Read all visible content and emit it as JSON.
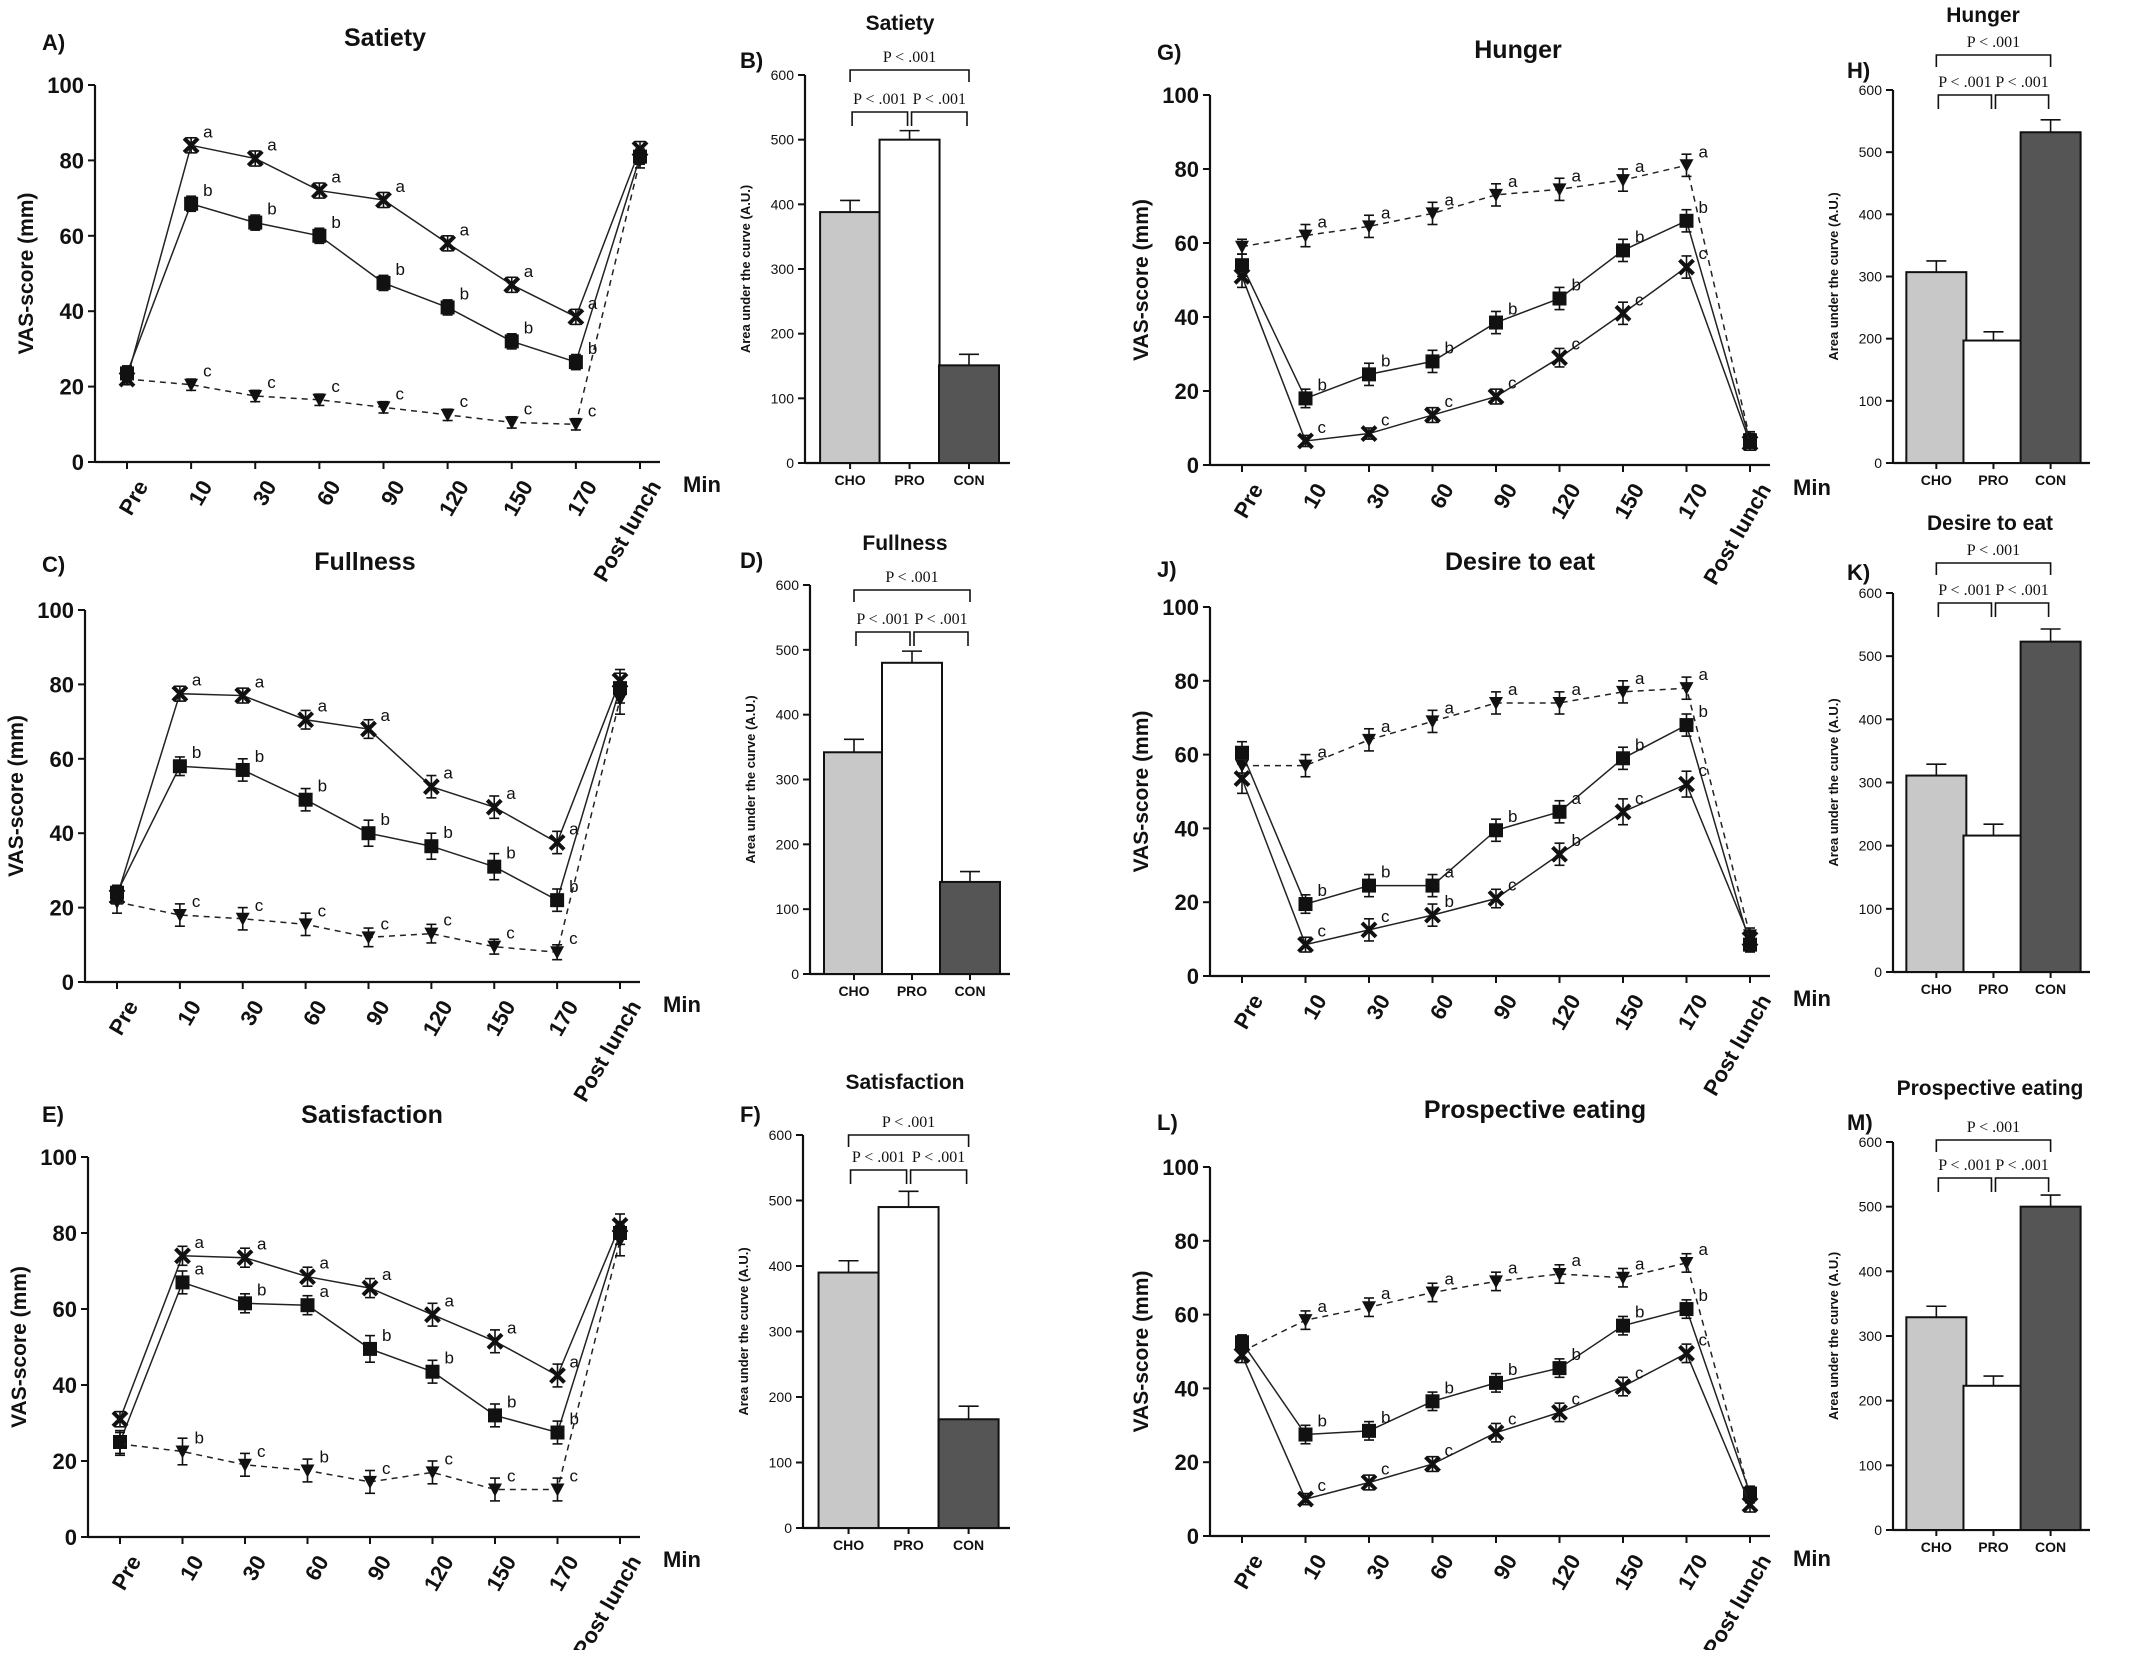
{
  "chart_data": [
    {
      "panel": "A)",
      "title": "Satiety",
      "type": "line",
      "ylabel": "VAS-score (mm)",
      "xlabel": "Min",
      "ylim": [
        0,
        100
      ],
      "yticks": [
        0,
        20,
        40,
        60,
        80,
        100
      ],
      "categories": [
        "Pre",
        "10",
        "30",
        "60",
        "90",
        "120",
        "150",
        "170",
        "Post lunch"
      ],
      "series": [
        {
          "marker": "cross",
          "dash": false,
          "values": [
            22,
            84,
            80.5,
            72,
            69.5,
            58,
            47,
            38.5,
            83
          ],
          "err": [
            1.5,
            2,
            2,
            2,
            2,
            2,
            2,
            2,
            2
          ],
          "letters": [
            "",
            "a",
            "a",
            "a",
            "a",
            "a",
            "a",
            "a",
            ""
          ]
        },
        {
          "marker": "square",
          "dash": false,
          "values": [
            23.5,
            68.5,
            63.5,
            60,
            47.5,
            41,
            32,
            26.5,
            81
          ],
          "err": [
            2,
            2,
            2,
            2,
            2,
            2,
            2,
            2,
            2
          ],
          "letters": [
            "",
            "b",
            "b",
            "b",
            "b",
            "b",
            "b",
            "b",
            ""
          ]
        },
        {
          "marker": "triangle",
          "dash": true,
          "values": [
            22,
            20.5,
            17.5,
            16.5,
            14.5,
            12.5,
            10.5,
            10,
            80
          ],
          "err": [
            1.5,
            1.5,
            1.5,
            1.5,
            1.5,
            1.5,
            1.5,
            1.5,
            2
          ],
          "letters": [
            "",
            "c",
            "c",
            "c",
            "c",
            "c",
            "c",
            "c",
            ""
          ]
        }
      ]
    },
    {
      "panel": "B)",
      "title": "Satiety",
      "type": "bar",
      "ylabel": "Area under the curve (A.U.)",
      "ylim": [
        0,
        600
      ],
      "yticks": [
        0,
        100,
        200,
        300,
        400,
        500,
        600
      ],
      "categories": [
        "CHO",
        "PRO",
        "CON"
      ],
      "values": [
        388,
        500,
        151
      ],
      "errors": [
        18,
        14,
        17
      ],
      "colors": [
        "#c8c8c8",
        "#ffffff",
        "#555555"
      ],
      "comparisons": [
        {
          "label": "P < .001",
          "span": [
            0,
            1
          ]
        },
        {
          "label": "P < .001",
          "span": [
            1,
            2
          ]
        },
        {
          "label": "P < .001",
          "span": [
            0,
            2
          ]
        }
      ]
    },
    {
      "panel": "C)",
      "title": "Fullness",
      "type": "line",
      "ylabel": "VAS-score (mm)",
      "xlabel": "Min",
      "ylim": [
        0,
        100
      ],
      "yticks": [
        0,
        20,
        40,
        60,
        80,
        100
      ],
      "categories": [
        "Pre",
        "10",
        "30",
        "60",
        "90",
        "120",
        "150",
        "170",
        "Post lunch"
      ],
      "series": [
        {
          "marker": "cross",
          "dash": false,
          "values": [
            23,
            77.5,
            77,
            70.5,
            68,
            52.5,
            47,
            37.5,
            81
          ],
          "err": [
            2,
            2,
            2,
            2.5,
            2.5,
            3,
            3,
            3,
            3
          ],
          "letters": [
            "",
            "a",
            "a",
            "a",
            "a",
            "a",
            "a",
            "a",
            ""
          ]
        },
        {
          "marker": "square",
          "dash": false,
          "values": [
            24,
            58,
            57,
            49,
            40,
            36.5,
            31,
            22,
            79
          ],
          "err": [
            2,
            2.5,
            3,
            3,
            3.5,
            3.5,
            3.5,
            3,
            4
          ],
          "letters": [
            "",
            "b",
            "b",
            "b",
            "b",
            "b",
            "b",
            "b",
            ""
          ]
        },
        {
          "marker": "triangle",
          "dash": true,
          "values": [
            21.5,
            18,
            17,
            15.5,
            12,
            13,
            9.5,
            8,
            76
          ],
          "err": [
            3,
            3,
            3,
            3,
            2.5,
            2.5,
            2,
            2,
            4
          ],
          "letters": [
            "",
            "c",
            "c",
            "c",
            "c",
            "c",
            "c",
            "c",
            ""
          ]
        }
      ]
    },
    {
      "panel": "D)",
      "title": "Fullness",
      "type": "bar",
      "ylabel": "Area under the curve (A.U.)",
      "ylim": [
        0,
        600
      ],
      "yticks": [
        0,
        100,
        200,
        300,
        400,
        500,
        600
      ],
      "categories": [
        "CHO",
        "PRO",
        "CON"
      ],
      "values": [
        342,
        480,
        142
      ],
      "errors": [
        20,
        18,
        16
      ],
      "colors": [
        "#c8c8c8",
        "#ffffff",
        "#555555"
      ],
      "comparisons": [
        {
          "label": "P < .001",
          "span": [
            0,
            1
          ]
        },
        {
          "label": "P < .001",
          "span": [
            1,
            2
          ]
        },
        {
          "label": "P < .001",
          "span": [
            0,
            2
          ]
        }
      ]
    },
    {
      "panel": "E)",
      "title": "Satisfaction",
      "type": "line",
      "ylabel": "VAS-score (mm)",
      "xlabel": "Min",
      "ylim": [
        0,
        100
      ],
      "yticks": [
        0,
        20,
        40,
        60,
        80,
        100
      ],
      "categories": [
        "Pre",
        "10",
        "30",
        "60",
        "90",
        "120",
        "150",
        "170",
        "Post lunch"
      ],
      "series": [
        {
          "marker": "cross",
          "dash": false,
          "values": [
            31,
            74,
            73.5,
            68.5,
            65.5,
            58.5,
            51.5,
            42.5,
            82
          ],
          "err": [
            2,
            2.5,
            2.5,
            2.5,
            2.5,
            3,
            3,
            3,
            3
          ],
          "letters": [
            "",
            "a",
            "a",
            "a",
            "a",
            "a",
            "a",
            "a",
            ""
          ]
        },
        {
          "marker": "square",
          "dash": false,
          "values": [
            25,
            67,
            61.5,
            61,
            49.5,
            43.5,
            32,
            27.5,
            80
          ],
          "err": [
            3,
            3,
            2.5,
            2.5,
            3.5,
            3,
            3,
            3,
            3
          ],
          "letters": [
            "",
            "a",
            "b",
            "a",
            "b",
            "b",
            "b",
            "b",
            ""
          ]
        },
        {
          "marker": "triangle",
          "dash": true,
          "values": [
            24.5,
            22.5,
            19,
            17.5,
            14.5,
            17,
            12.5,
            12.5,
            78
          ],
          "err": [
            3,
            3.5,
            3,
            3,
            3,
            3,
            3,
            3,
            4
          ],
          "letters": [
            "",
            "b",
            "c",
            "b",
            "c",
            "c",
            "c",
            "c",
            ""
          ]
        }
      ]
    },
    {
      "panel": "F)",
      "title": "Satisfaction",
      "type": "bar",
      "ylabel": "Area under the curve (A.U.)",
      "ylim": [
        0,
        600
      ],
      "yticks": [
        0,
        100,
        200,
        300,
        400,
        500,
        600
      ],
      "categories": [
        "CHO",
        "PRO",
        "CON"
      ],
      "values": [
        390,
        490,
        166
      ],
      "errors": [
        18,
        24,
        20
      ],
      "colors": [
        "#c8c8c8",
        "#ffffff",
        "#555555"
      ],
      "comparisons": [
        {
          "label": "P < .001",
          "span": [
            0,
            1
          ]
        },
        {
          "label": "P < .001",
          "span": [
            1,
            2
          ]
        },
        {
          "label": "P < .001",
          "span": [
            0,
            2
          ]
        }
      ]
    },
    {
      "panel": "G)",
      "title": "Hunger",
      "type": "line",
      "ylabel": "VAS-score (mm)",
      "xlabel": "Min",
      "ylim": [
        0,
        100
      ],
      "yticks": [
        0,
        20,
        40,
        60,
        80,
        100
      ],
      "categories": [
        "Pre",
        "10",
        "30",
        "60",
        "90",
        "120",
        "150",
        "170",
        "Post lunch"
      ],
      "series": [
        {
          "marker": "triangle",
          "dash": true,
          "values": [
            59,
            62,
            64.5,
            68,
            73,
            74.5,
            77,
            81,
            7
          ],
          "err": [
            2,
            3,
            3,
            3,
            3,
            3,
            3,
            3,
            2
          ],
          "letters": [
            "",
            "a",
            "a",
            "a",
            "a",
            "a",
            "a",
            "a",
            ""
          ]
        },
        {
          "marker": "square",
          "dash": false,
          "values": [
            54,
            18,
            24.5,
            28,
            38.5,
            45,
            58,
            66,
            6.5
          ],
          "err": [
            3,
            2.5,
            3,
            3,
            3,
            3,
            3,
            3,
            2
          ],
          "letters": [
            "",
            "b",
            "b",
            "b",
            "b",
            "b",
            "b",
            "b",
            ""
          ]
        },
        {
          "marker": "cross",
          "dash": false,
          "values": [
            51,
            6.5,
            8.5,
            13.5,
            18.5,
            29,
            41,
            53.5,
            6
          ],
          "err": [
            3,
            1.5,
            1.5,
            2,
            2,
            2.5,
            3,
            3,
            2
          ],
          "letters": [
            "",
            "c",
            "c",
            "c",
            "c",
            "c",
            "c",
            "c",
            ""
          ]
        }
      ]
    },
    {
      "panel": "H)",
      "title": "Hunger",
      "type": "bar",
      "ylabel": "Area under the curve (A.U.)",
      "ylim": [
        0,
        600
      ],
      "yticks": [
        0,
        100,
        200,
        300,
        400,
        500,
        600
      ],
      "categories": [
        "CHO",
        "PRO",
        "CON"
      ],
      "values": [
        307,
        197,
        532
      ],
      "errors": [
        18,
        14,
        20
      ],
      "colors": [
        "#c8c8c8",
        "#ffffff",
        "#555555"
      ],
      "comparisons": [
        {
          "label": "P < .001",
          "span": [
            0,
            1
          ]
        },
        {
          "label": "P < .001",
          "span": [
            1,
            2
          ]
        },
        {
          "label": "P < .001",
          "span": [
            0,
            2
          ]
        }
      ]
    },
    {
      "panel": "J)",
      "title": "Desire to eat",
      "type": "line",
      "ylabel": "VAS-score (mm)",
      "xlabel": "Min",
      "ylim": [
        0,
        100
      ],
      "yticks": [
        0,
        20,
        40,
        60,
        80,
        100
      ],
      "categories": [
        "Pre",
        "10",
        "30",
        "60",
        "90",
        "120",
        "150",
        "170",
        "Post lunch"
      ],
      "series": [
        {
          "marker": "triangle",
          "dash": true,
          "values": [
            57,
            57,
            64,
            69,
            74,
            74,
            77,
            78,
            11
          ],
          "err": [
            2,
            3,
            3,
            3,
            3,
            3,
            3,
            3,
            2
          ],
          "letters": [
            "",
            "a",
            "a",
            "a",
            "a",
            "a",
            "a",
            "a",
            ""
          ]
        },
        {
          "marker": "square",
          "dash": false,
          "values": [
            60.5,
            19.5,
            24.5,
            24.5,
            39.5,
            44.5,
            59,
            68,
            8.5
          ],
          "err": [
            3,
            2.5,
            3,
            3,
            3,
            3,
            3,
            3,
            2
          ],
          "letters": [
            "",
            "b",
            "b",
            "a",
            "b",
            "a",
            "b",
            "b",
            ""
          ]
        },
        {
          "marker": "cross",
          "dash": false,
          "values": [
            53.5,
            8.5,
            12.5,
            16.5,
            21,
            33,
            44.5,
            52,
            10
          ],
          "err": [
            4,
            2,
            3,
            3,
            2.5,
            3,
            3.5,
            3.5,
            2
          ],
          "letters": [
            "",
            "c",
            "c",
            "b",
            "c",
            "b",
            "c",
            "c",
            ""
          ]
        }
      ]
    },
    {
      "panel": "K)",
      "title": "Desire to eat",
      "type": "bar",
      "ylabel": "Area under the curve (A.U.)",
      "ylim": [
        0,
        600
      ],
      "yticks": [
        0,
        100,
        200,
        300,
        400,
        500,
        600
      ],
      "categories": [
        "CHO",
        "PRO",
        "CON"
      ],
      "values": [
        311,
        216,
        523
      ],
      "errors": [
        18,
        18,
        20
      ],
      "colors": [
        "#c8c8c8",
        "#ffffff",
        "#555555"
      ],
      "comparisons": [
        {
          "label": "P < .001",
          "span": [
            0,
            1
          ]
        },
        {
          "label": "P < .001",
          "span": [
            1,
            2
          ]
        },
        {
          "label": "P < .001",
          "span": [
            0,
            2
          ]
        }
      ]
    },
    {
      "panel": "L)",
      "title": "Prospective eating",
      "type": "line",
      "ylabel": "VAS-score (mm)",
      "xlabel": "Min",
      "ylim": [
        0,
        100
      ],
      "yticks": [
        0,
        20,
        40,
        60,
        80,
        100
      ],
      "categories": [
        "Pre",
        "10",
        "30",
        "60",
        "90",
        "120",
        "150",
        "170",
        "Post lunch"
      ],
      "series": [
        {
          "marker": "triangle",
          "dash": true,
          "values": [
            50,
            58.5,
            62,
            66,
            69,
            71,
            70,
            74,
            11
          ],
          "err": [
            2,
            2.5,
            2.5,
            2.5,
            2.5,
            2.5,
            2.5,
            2.5,
            2
          ],
          "letters": [
            "",
            "a",
            "a",
            "a",
            "a",
            "a",
            "a",
            "a",
            ""
          ]
        },
        {
          "marker": "square",
          "dash": false,
          "values": [
            52.5,
            27.5,
            28.5,
            36.5,
            41.5,
            45.5,
            57,
            61.5,
            11.5
          ],
          "err": [
            2,
            2.5,
            2.5,
            2.5,
            2.5,
            2.5,
            2.5,
            2.5,
            2
          ],
          "letters": [
            "",
            "b",
            "b",
            "b",
            "b",
            "b",
            "b",
            "b",
            ""
          ]
        },
        {
          "marker": "cross",
          "dash": false,
          "values": [
            49,
            10,
            14.5,
            19.5,
            28,
            33.5,
            40.5,
            49.5,
            8.5
          ],
          "err": [
            2,
            1.5,
            2,
            2,
            2.5,
            2.5,
            2.5,
            2.5,
            2
          ],
          "letters": [
            "",
            "c",
            "c",
            "c",
            "c",
            "c",
            "c",
            "c",
            ""
          ]
        }
      ]
    },
    {
      "panel": "M)",
      "title": "Prospective eating",
      "type": "bar",
      "ylabel": "Area under the curve (A.U.)",
      "ylim": [
        0,
        600
      ],
      "yticks": [
        0,
        100,
        200,
        300,
        400,
        500,
        600
      ],
      "categories": [
        "CHO",
        "PRO",
        "CON"
      ],
      "values": [
        329,
        223,
        500
      ],
      "errors": [
        17,
        15,
        18
      ],
      "colors": [
        "#c8c8c8",
        "#ffffff",
        "#555555"
      ],
      "comparisons": [
        {
          "label": "P < .001",
          "span": [
            0,
            1
          ]
        },
        {
          "label": "P < .001",
          "span": [
            1,
            2
          ]
        },
        {
          "label": "P < .001",
          "span": [
            0,
            2
          ]
        }
      ]
    }
  ]
}
